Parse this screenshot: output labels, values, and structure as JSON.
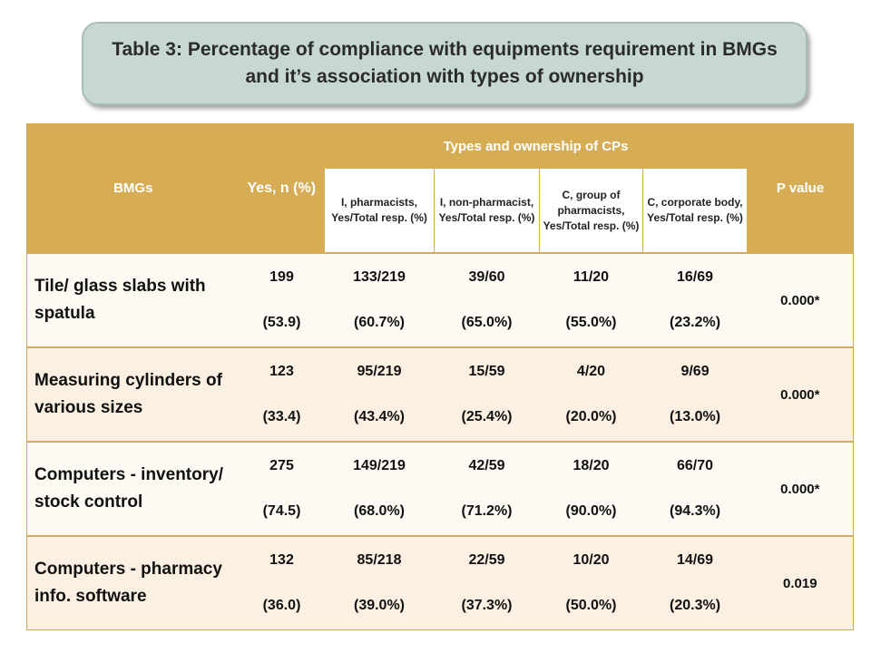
{
  "title": "Table 3: Percentage of compliance  with equipments requirement in BMGs and it’s association with types of ownership",
  "headers": {
    "bmgs": "BMGs",
    "yes": "Yes, n (%)",
    "types": "Types and ownership of CPs",
    "pvalue": "P value",
    "sub": [
      "I,  pharmacists, Yes/Total resp. (%)",
      "I, non-pharmacist, Yes/Total resp. (%)",
      "C, group of pharmacists, Yes/Total resp. (%)",
      "C, corporate body, Yes/Total resp. (%)"
    ]
  },
  "rows": [
    {
      "label": "Tile/ glass slabs with spatula",
      "yes": [
        "199",
        "(53.9)"
      ],
      "cols": [
        [
          "133/219",
          "(60.7%)"
        ],
        [
          "39/60",
          "(65.0%)"
        ],
        [
          "11/20",
          "(55.0%)"
        ],
        [
          "16/69",
          "(23.2%)"
        ]
      ],
      "p": "0.000*"
    },
    {
      "label": "Measuring cylinders of various sizes",
      "yes": [
        "123",
        "(33.4)"
      ],
      "cols": [
        [
          "95/219",
          "(43.4%)"
        ],
        [
          "15/59",
          "(25.4%)"
        ],
        [
          "4/20",
          "(20.0%)"
        ],
        [
          "9/69",
          "(13.0%)"
        ]
      ],
      "p": "0.000*"
    },
    {
      "label": "Computers - inventory/ stock control",
      "yes": [
        "275",
        "(74.5)"
      ],
      "cols": [
        [
          "149/219",
          "(68.0%)"
        ],
        [
          "42/59",
          "(71.2%)"
        ],
        [
          "18/20",
          "(90.0%)"
        ],
        [
          "66/70",
          "(94.3%)"
        ]
      ],
      "p": "0.000*"
    },
    {
      "label": "Computers - pharmacy info. software",
      "yes": [
        "132",
        "(36.0)"
      ],
      "cols": [
        [
          "85/218",
          "(39.0%)"
        ],
        [
          "22/59",
          "(37.3%)"
        ],
        [
          "10/20",
          "(50.0%)"
        ],
        [
          "14/69",
          "(20.3%)"
        ]
      ],
      "p": "0.019"
    }
  ]
}
